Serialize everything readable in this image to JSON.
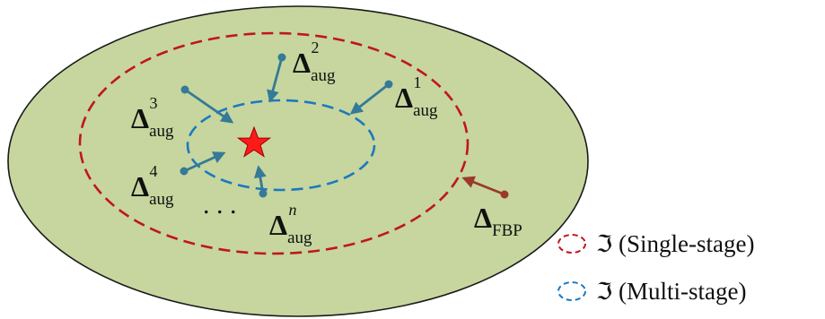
{
  "colors": {
    "region_fill": "#c6d69e",
    "region_stroke": "#1a1a1a",
    "single_stage_ring": "#c0161c",
    "multi_stage_ring": "#1d78c0",
    "aug_arrow": "#357a96",
    "fbp_arrow": "#9a3a2d",
    "star_fill": "#ff1a1a",
    "star_stroke": "#a00000"
  },
  "icons": {
    "optimum": "star-icon",
    "single_stage_swatch": "dashed-ellipse-icon",
    "multi_stage_swatch": "dashed-ellipse-icon"
  },
  "labels": {
    "delta": "Δ",
    "aug_sub": "aug",
    "aug1_sup": "1",
    "aug2_sup": "2",
    "aug3_sup": "3",
    "aug4_sup": "4",
    "augn_sup": "n",
    "fbp_sub": "FBP",
    "dots": ". . ."
  },
  "legend": {
    "symbol": "ℑ",
    "single_stage": "(Single-stage)",
    "multi_stage": "(Multi-stage)"
  }
}
